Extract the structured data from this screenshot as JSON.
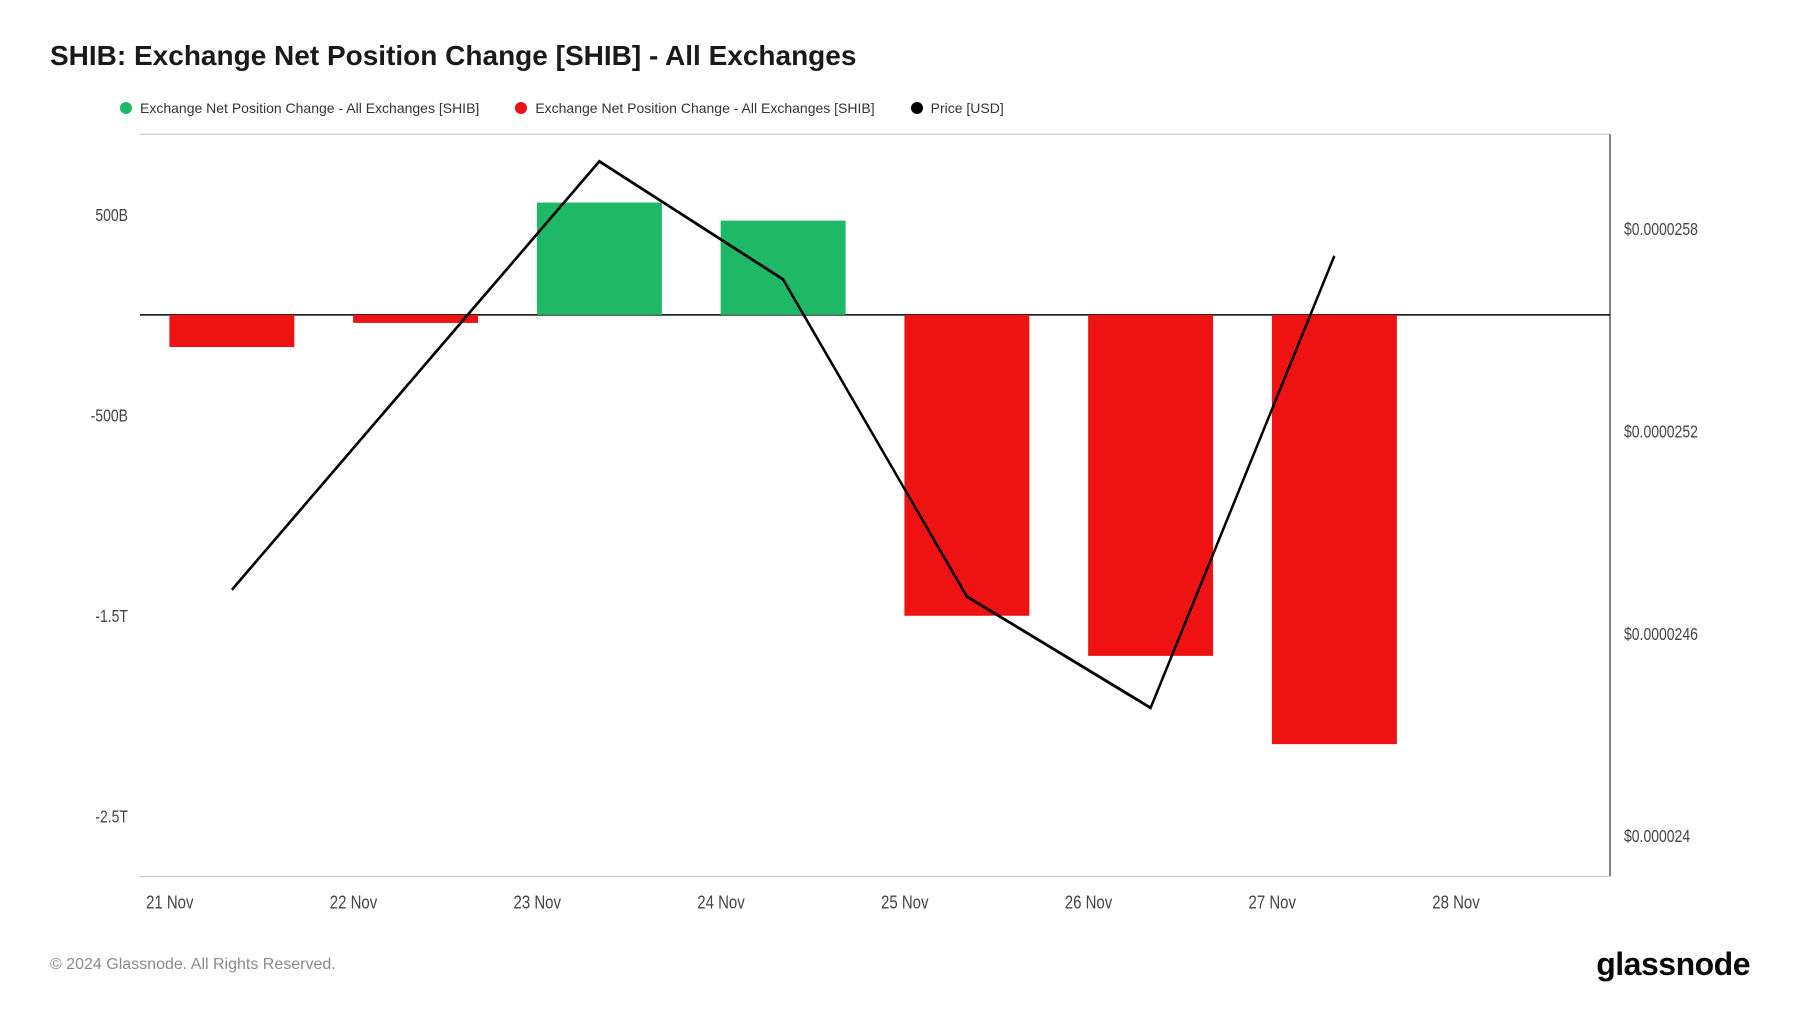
{
  "title": "SHIB: Exchange Net Position Change [SHIB] - All Exchanges",
  "legend": {
    "pos": {
      "label": "Exchange Net Position Change - All Exchanges [SHIB]",
      "color": "#1fb866"
    },
    "neg": {
      "label": "Exchange Net Position Change - All Exchanges [SHIB]",
      "color": "#ee1212"
    },
    "price": {
      "label": "Price [USD]",
      "color": "#000000"
    }
  },
  "chart": {
    "type": "bar+line",
    "background_color": "#ffffff",
    "border_color": "#000000",
    "x": {
      "categories": [
        "21 Nov",
        "22 Nov",
        "23 Nov",
        "24 Nov",
        "25 Nov",
        "26 Nov",
        "27 Nov",
        "28 Nov"
      ]
    },
    "y_left": {
      "min": -2800000000000.0,
      "max": 900000000000.0,
      "ticks": [
        {
          "v": 500000000000.0,
          "label": "500B"
        },
        {
          "v": -500000000000.0,
          "label": "-500B"
        },
        {
          "v": -1500000000000.0,
          "label": "-1.5T"
        },
        {
          "v": -2500000000000.0,
          "label": "-2.5T"
        }
      ]
    },
    "y_right": {
      "min": 2.388e-05,
      "max": 2.608e-05,
      "ticks": [
        {
          "v": 2.58e-05,
          "label": "$0.0000258"
        },
        {
          "v": 2.52e-05,
          "label": "$0.0000252"
        },
        {
          "v": 2.46e-05,
          "label": "$0.0000246"
        },
        {
          "v": 2.4e-05,
          "label": "$0.000024"
        }
      ]
    },
    "bars": {
      "width_frac": 0.68,
      "values": [
        {
          "x": 0,
          "v": -160000000000.0,
          "kind": "neg"
        },
        {
          "x": 1,
          "v": -40000000000.0,
          "kind": "neg"
        },
        {
          "x": 2,
          "v": 560000000000.0,
          "kind": "pos"
        },
        {
          "x": 3,
          "v": 470000000000.0,
          "kind": "pos"
        },
        {
          "x": 4,
          "v": -1500000000000.0,
          "kind": "neg"
        },
        {
          "x": 5,
          "v": -1700000000000.0,
          "kind": "neg"
        },
        {
          "x": 6,
          "v": -2140000000000.0,
          "kind": "neg"
        }
      ]
    },
    "price_line": {
      "color": "#000000",
      "width": 2.4,
      "points": [
        {
          "x": 0,
          "v": 2.473e-05
        },
        {
          "x": 2,
          "v": 2.6e-05
        },
        {
          "x": 3,
          "v": 2.565e-05
        },
        {
          "x": 4,
          "v": 2.471e-05
        },
        {
          "x": 5,
          "v": 2.438e-05
        },
        {
          "x": 6,
          "v": 2.572e-05
        }
      ]
    },
    "colors": {
      "pos": "#1fb866",
      "neg": "#ee1212"
    }
  },
  "footer": {
    "copyright": "© 2024 Glassnode. All Rights Reserved.",
    "brand": "glassnode"
  }
}
